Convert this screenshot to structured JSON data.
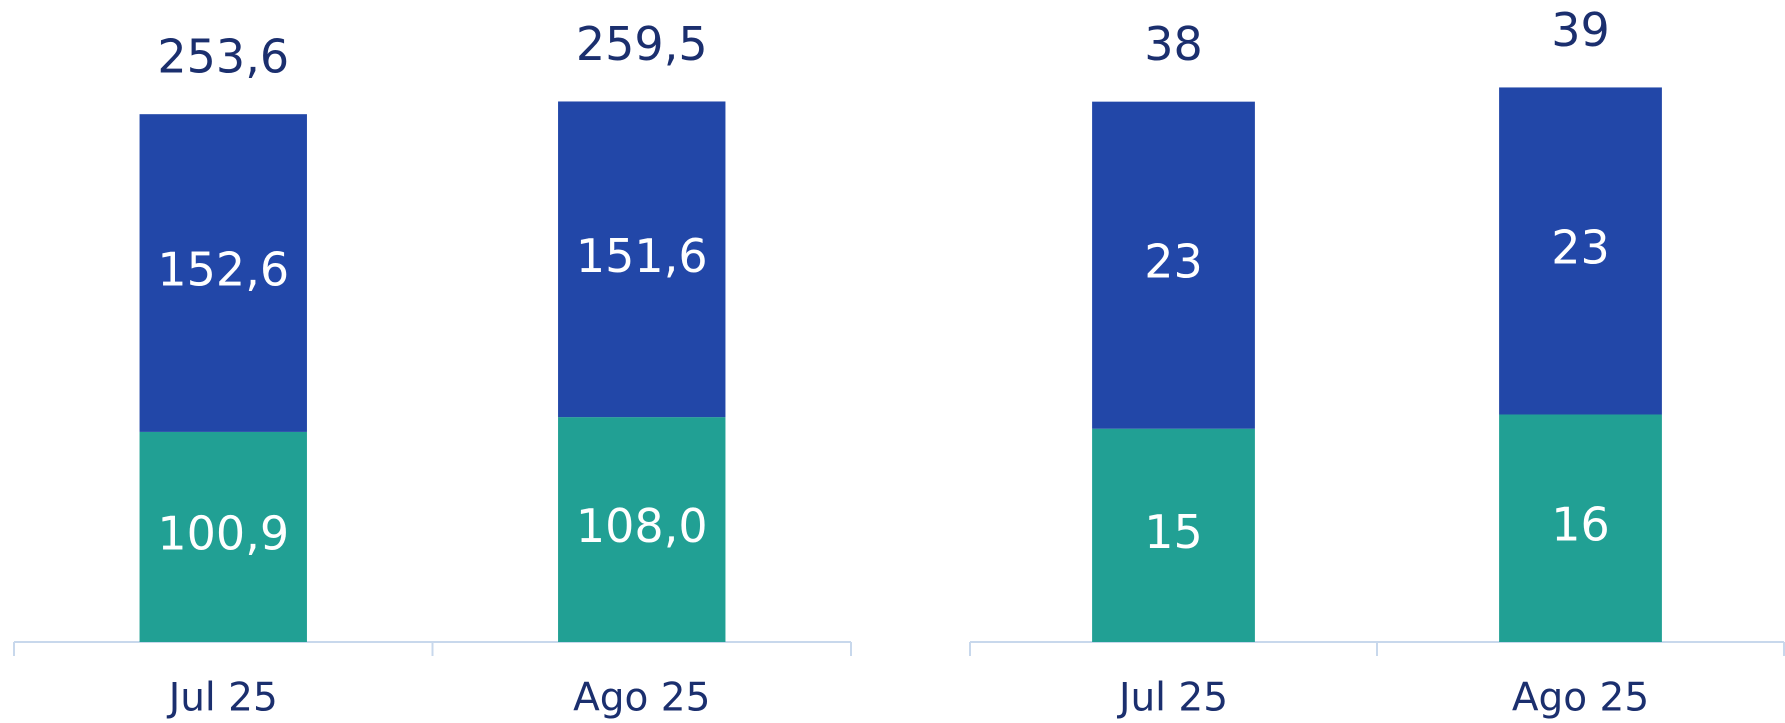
{
  "chart_data": [
    {
      "type": "stacked_bar",
      "categories": [
        "Jul 25",
        "Ago 25"
      ],
      "series": [
        {
          "color": "#21a094",
          "values": [
            100.9,
            108.0
          ],
          "value_labels": [
            "100,9",
            "108,0"
          ]
        },
        {
          "color": "#2247a8",
          "values": [
            152.6,
            151.6
          ],
          "value_labels": [
            "152,6",
            "151,6"
          ]
        }
      ],
      "totals": [
        253.6,
        259.5
      ],
      "total_labels": [
        "253,6",
        "259,5"
      ],
      "ylim": [
        0,
        280
      ]
    },
    {
      "type": "stacked_bar",
      "categories": [
        "Jul 25",
        "Ago 25"
      ],
      "series": [
        {
          "color": "#21a094",
          "values": [
            15,
            16
          ]
        },
        {
          "color": "#2247a8",
          "values": [
            23,
            23
          ]
        }
      ],
      "totals": [
        38,
        39
      ],
      "ylim": [
        0,
        41
      ]
    }
  ]
}
